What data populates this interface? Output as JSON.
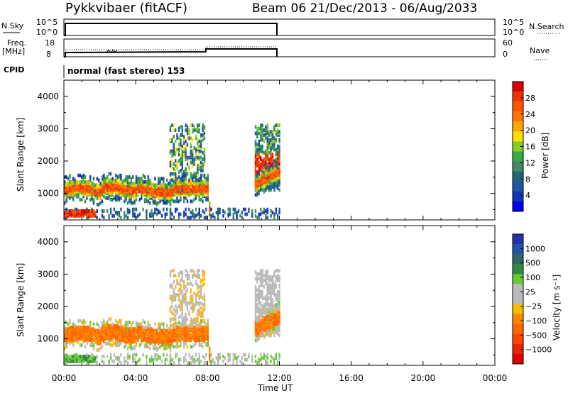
{
  "header": {
    "station": "Pykkvibaer (fitACF)",
    "beam_info": "Beam 06  21/Dec/2013 - 06/Aug/2033"
  },
  "panels": {
    "nsky_label": "N.Sky",
    "nsky_ticks": [
      "10^5",
      "10^0"
    ],
    "nsky_right_ticks": [
      "10^5",
      "10^0"
    ],
    "nsearch_label": "N.Search",
    "freq_label": "Freq.",
    "freq_unit": "[MHz]",
    "freq_ticks": [
      "18",
      "8"
    ],
    "nave_ticks": [
      "60",
      "0"
    ],
    "nave_label": "Nave",
    "cpid_label": "CPID",
    "cpid_value": "normal (fast stereo) 153"
  },
  "chart_data": {
    "type": "heatmap",
    "xlabel": "Time UT",
    "x_ticks": [
      "00:00",
      "04:00",
      "08:00",
      "12:00",
      "16:00",
      "20:00",
      "00:00"
    ],
    "xlim_hours": [
      0,
      24
    ],
    "data_end_hour": 12,
    "ylabel": "Slant Range [km]",
    "y_ticks": [
      4000,
      3000,
      2000,
      1000
    ],
    "ylim_km": [
      180,
      4500
    ],
    "power": {
      "label": "Power [dB]",
      "ticks": [
        "28",
        "24",
        "20",
        "16",
        "12",
        "8",
        "4"
      ],
      "colors": [
        "#dd0000",
        "#ee3300",
        "#ff5500",
        "#ff7700",
        "#ffaa00",
        "#ffdd00",
        "#88cc22",
        "#33aa44",
        "#448866",
        "#226677",
        "#2255aa",
        "#1133bb",
        "#0000ee"
      ]
    },
    "velocity": {
      "label": "Velocity [m s⁻¹]",
      "ticks": [
        "1000",
        "500",
        "100",
        "25",
        "−25",
        "−100",
        "−500",
        "−1000"
      ],
      "colors": [
        "#2233aa",
        "#2255aa",
        "#336666",
        "#338844",
        "#66cc33",
        "#bbbbbb",
        "#bbbbbb",
        "#ffbb00",
        "#ff8800",
        "#ff6600",
        "#ff4400",
        "#ee2200",
        "#dd0000"
      ]
    }
  }
}
